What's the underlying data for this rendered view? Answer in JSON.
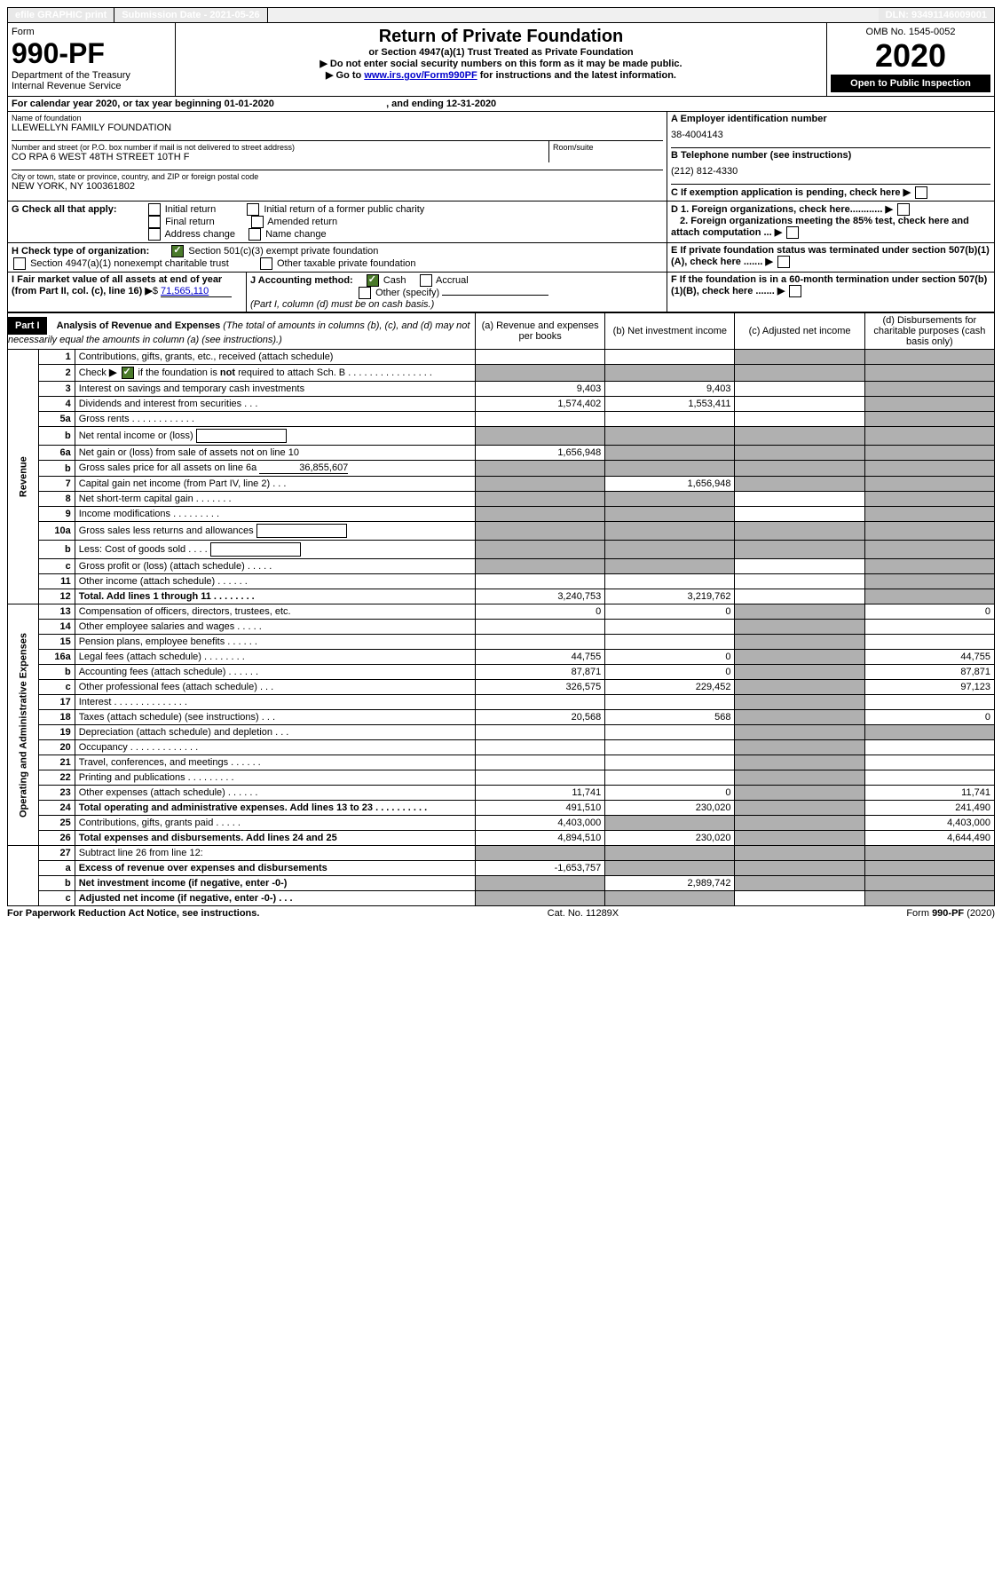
{
  "topbar": {
    "efile": "efile GRAPHIC print",
    "submission_label": "Submission Date - 2021-05-26",
    "dln": "DLN: 93491146009001"
  },
  "header": {
    "form_label": "Form",
    "form_number": "990-PF",
    "dept": "Department of the Treasury",
    "irs": "Internal Revenue Service",
    "title": "Return of Private Foundation",
    "subtitle": "or Section 4947(a)(1) Trust Treated as Private Foundation",
    "note1": "▶ Do not enter social security numbers on this form as it may be made public.",
    "note2_prefix": "▶ Go to ",
    "note2_link": "www.irs.gov/Form990PF",
    "note2_suffix": " for instructions and the latest information.",
    "omb": "OMB No. 1545-0052",
    "year": "2020",
    "open": "Open to Public Inspection"
  },
  "calendar": {
    "text_prefix": "For calendar year 2020, or tax year beginning ",
    "begin": "01-01-2020",
    "mid": ", and ending ",
    "end": "12-31-2020"
  },
  "id_block": {
    "name_label": "Name of foundation",
    "name": "LLEWELLYN FAMILY FOUNDATION",
    "addr_label": "Number and street (or P.O. box number if mail is not delivered to street address)",
    "addr": "CO RPA 6 WEST 48TH STREET 10TH F",
    "room_label": "Room/suite",
    "city_label": "City or town, state or province, country, and ZIP or foreign postal code",
    "city": "NEW YORK, NY  100361802",
    "a_label": "A Employer identification number",
    "a_val": "38-4004143",
    "b_label": "B Telephone number (see instructions)",
    "b_val": "(212) 812-4330",
    "c_label": "C If exemption application is pending, check here",
    "d1": "D 1. Foreign organizations, check here............",
    "d2": "2. Foreign organizations meeting the 85% test, check here and attach computation ...",
    "e_label": "E  If private foundation status was terminated under section 507(b)(1)(A), check here .......",
    "f_label": "F  If the foundation is in a 60-month termination under section 507(b)(1)(B), check here .......",
    "g_label": "G Check all that apply:",
    "g_opts": [
      "Initial return",
      "Initial return of a former public charity",
      "Final return",
      "Amended return",
      "Address change",
      "Name change"
    ],
    "h_label": "H Check type of organization:",
    "h1": "Section 501(c)(3) exempt private foundation",
    "h2": "Section 4947(a)(1) nonexempt charitable trust",
    "h3": "Other taxable private foundation",
    "i_label": "I Fair market value of all assets at end of year (from Part II, col. (c), line 16)",
    "i_val": "71,565,110",
    "j_label": "J Accounting method:",
    "j_cash": "Cash",
    "j_accrual": "Accrual",
    "j_other": "Other (specify)",
    "j_note": "(Part I, column (d) must be on cash basis.)"
  },
  "part1": {
    "label": "Part I",
    "title": "Analysis of Revenue and Expenses",
    "title_note": "(The total of amounts in columns (b), (c), and (d) may not necessarily equal the amounts in column (a) (see instructions).)",
    "col_a": "(a)   Revenue and expenses per books",
    "col_b": "(b)   Net investment income",
    "col_c": "(c)   Adjusted net income",
    "col_d": "(d)   Disbursements for charitable purposes (cash basis only)"
  },
  "sections": {
    "revenue": "Revenue",
    "opex": "Operating and Administrative Expenses"
  },
  "rows": [
    {
      "n": "1",
      "d": "Contributions, gifts, grants, etc., received (attach schedule)",
      "a": "",
      "b": "",
      "c": "s",
      "dd": "s"
    },
    {
      "n": "2",
      "d": "Check ▶ [x] if the foundation is not required to attach Sch. B    .   .   .   .   .   .   .   .   .   .   .   .   .   .   .   .",
      "a": "s",
      "b": "s",
      "c": "s",
      "dd": "s",
      "hascheck": true
    },
    {
      "n": "3",
      "d": "Interest on savings and temporary cash investments",
      "a": "9,403",
      "b": "9,403",
      "c": "",
      "dd": "s"
    },
    {
      "n": "4",
      "d": "Dividends and interest from securities    .   .   .",
      "a": "1,574,402",
      "b": "1,553,411",
      "c": "",
      "dd": "s"
    },
    {
      "n": "5a",
      "d": "Gross rents    .   .   .   .   .   .   .   .   .   .   .   .",
      "a": "",
      "b": "",
      "c": "",
      "dd": "s"
    },
    {
      "n": "b",
      "d": "Net rental income or (loss)  ",
      "a": "s",
      "b": "s",
      "c": "s",
      "dd": "s",
      "input": true
    },
    {
      "n": "6a",
      "d": "Net gain or (loss) from sale of assets not on line 10",
      "a": "1,656,948",
      "b": "s",
      "c": "s",
      "dd": "s"
    },
    {
      "n": "b",
      "d": "Gross sales price for all assets on line 6a",
      "a": "s",
      "b": "s",
      "c": "s",
      "dd": "s",
      "inline_val": "36,855,607"
    },
    {
      "n": "7",
      "d": "Capital gain net income (from Part IV, line 2)    .   .   .",
      "a": "s",
      "b": "1,656,948",
      "c": "s",
      "dd": "s"
    },
    {
      "n": "8",
      "d": "Net short-term capital gain    .   .   .   .   .   .   .",
      "a": "s",
      "b": "s",
      "c": "",
      "dd": "s"
    },
    {
      "n": "9",
      "d": "Income modifications   .   .   .   .   .   .   .   .   .",
      "a": "s",
      "b": "s",
      "c": "",
      "dd": "s"
    },
    {
      "n": "10a",
      "d": "Gross sales less returns and allowances",
      "a": "s",
      "b": "s",
      "c": "s",
      "dd": "s",
      "input": true
    },
    {
      "n": "b",
      "d": "Less: Cost of goods sold     .   .   .   .",
      "a": "s",
      "b": "s",
      "c": "s",
      "dd": "s",
      "input": true
    },
    {
      "n": "c",
      "d": "Gross profit or (loss) (attach schedule)     .   .   .   .   .",
      "a": "s",
      "b": "s",
      "c": "",
      "dd": "s"
    },
    {
      "n": "11",
      "d": "Other income (attach schedule)     .   .   .   .   .   .",
      "a": "",
      "b": "",
      "c": "",
      "dd": "s"
    },
    {
      "n": "12",
      "d": "Total. Add lines 1 through 11    .   .   .   .   .   .   .   .",
      "a": "3,240,753",
      "b": "3,219,762",
      "c": "",
      "dd": "s",
      "bold": true
    }
  ],
  "rows2": [
    {
      "n": "13",
      "d": "Compensation of officers, directors, trustees, etc.",
      "a": "0",
      "b": "0",
      "c": "s",
      "dd": "0"
    },
    {
      "n": "14",
      "d": "Other employee salaries and wages     .   .   .   .   .",
      "a": "",
      "b": "",
      "c": "s",
      "dd": ""
    },
    {
      "n": "15",
      "d": "Pension plans, employee benefits   .   .   .   .   .   .",
      "a": "",
      "b": "",
      "c": "s",
      "dd": ""
    },
    {
      "n": "16a",
      "d": "Legal fees (attach schedule)  .   .   .   .   .   .   .   .",
      "a": "44,755",
      "b": "0",
      "c": "s",
      "dd": "44,755"
    },
    {
      "n": "b",
      "d": "Accounting fees (attach schedule)  .   .   .   .   .   .",
      "a": "87,871",
      "b": "0",
      "c": "s",
      "dd": "87,871"
    },
    {
      "n": "c",
      "d": "Other professional fees (attach schedule)     .   .   .",
      "a": "326,575",
      "b": "229,452",
      "c": "s",
      "dd": "97,123"
    },
    {
      "n": "17",
      "d": "Interest   .   .   .   .   .   .   .   .   .   .   .   .   .   .",
      "a": "",
      "b": "",
      "c": "s",
      "dd": ""
    },
    {
      "n": "18",
      "d": "Taxes (attach schedule) (see instructions)     .   .   .",
      "a": "20,568",
      "b": "568",
      "c": "s",
      "dd": "0"
    },
    {
      "n": "19",
      "d": "Depreciation (attach schedule) and depletion    .   .   .",
      "a": "",
      "b": "",
      "c": "s",
      "dd": "s"
    },
    {
      "n": "20",
      "d": "Occupancy  .   .   .   .   .   .   .   .   .   .   .   .   .",
      "a": "",
      "b": "",
      "c": "s",
      "dd": ""
    },
    {
      "n": "21",
      "d": "Travel, conferences, and meetings  .   .   .   .   .   .",
      "a": "",
      "b": "",
      "c": "s",
      "dd": ""
    },
    {
      "n": "22",
      "d": "Printing and publications  .   .   .   .   .   .   .   .   .",
      "a": "",
      "b": "",
      "c": "s",
      "dd": ""
    },
    {
      "n": "23",
      "d": "Other expenses (attach schedule)  .   .   .   .   .   .",
      "a": "11,741",
      "b": "0",
      "c": "s",
      "dd": "11,741"
    },
    {
      "n": "24",
      "d": "Total operating and administrative expenses. Add lines 13 to 23    .   .   .   .   .   .   .   .   .   .",
      "a": "491,510",
      "b": "230,020",
      "c": "s",
      "dd": "241,490",
      "bold": true
    },
    {
      "n": "25",
      "d": "Contributions, gifts, grants paid     .   .   .   .   .",
      "a": "4,403,000",
      "b": "s",
      "c": "s",
      "dd": "4,403,000"
    },
    {
      "n": "26",
      "d": "Total expenses and disbursements. Add lines 24 and 25",
      "a": "4,894,510",
      "b": "230,020",
      "c": "s",
      "dd": "4,644,490",
      "bold": true
    }
  ],
  "rows3": [
    {
      "n": "27",
      "d": "Subtract line 26 from line 12:",
      "a": "s",
      "b": "s",
      "c": "s",
      "dd": "s"
    },
    {
      "n": "a",
      "d": "Excess of revenue over expenses and disbursements",
      "a": "-1,653,757",
      "b": "s",
      "c": "s",
      "dd": "s",
      "bold": true
    },
    {
      "n": "b",
      "d": "Net investment income (if negative, enter -0-)",
      "a": "s",
      "b": "2,989,742",
      "c": "s",
      "dd": "s",
      "bold": true
    },
    {
      "n": "c",
      "d": "Adjusted net income (if negative, enter -0-)    .   .   .",
      "a": "s",
      "b": "s",
      "c": "",
      "dd": "s",
      "bold": true
    }
  ],
  "footer": {
    "left": "For Paperwork Reduction Act Notice, see instructions.",
    "center": "Cat. No. 11289X",
    "right": "Form 990-PF (2020)"
  }
}
